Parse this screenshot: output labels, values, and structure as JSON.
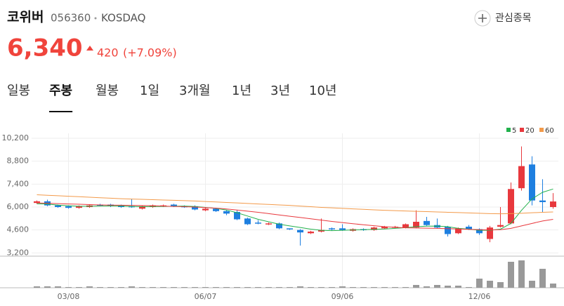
{
  "header": {
    "name": "코위버",
    "code": "056360",
    "market": "KOSDAQ",
    "watch_label": "관심종목"
  },
  "price": {
    "current": "6,340",
    "change": "420",
    "change_rate": "(+7.09%)",
    "color": "#f0443c"
  },
  "tabs": {
    "items": [
      "일봉",
      "주봉",
      "월봉",
      "1일",
      "3개월",
      "1년",
      "3년",
      "10년"
    ],
    "selected": "주봉"
  },
  "chart_data": {
    "type": "candlestick",
    "categories": [
      null,
      null,
      null,
      "03/08",
      null,
      null,
      null,
      null,
      null,
      null,
      null,
      null,
      null,
      null,
      null,
      null,
      "06/07",
      null,
      null,
      null,
      null,
      null,
      null,
      null,
      null,
      null,
      null,
      null,
      null,
      "09/06",
      null,
      null,
      null,
      null,
      null,
      null,
      null,
      null,
      null,
      null,
      null,
      null,
      "12/06",
      null,
      null,
      null,
      null,
      null,
      null,
      null
    ],
    "open": [
      6250,
      6350,
      6100,
      6050,
      5950,
      6000,
      6150,
      6150,
      6100,
      6050,
      5900,
      6000,
      6050,
      6150,
      6050,
      6050,
      5800,
      5900,
      5750,
      5700,
      5300,
      5050,
      4950,
      5000,
      4700,
      4600,
      4400,
      4500,
      4700,
      4700,
      4550,
      4650,
      4600,
      4700,
      4750,
      4750,
      4750,
      5150,
      4900,
      4800,
      4400,
      4800,
      4650,
      4050,
      4800,
      5000,
      7150,
      8600,
      6400,
      6000
    ],
    "high": [
      6400,
      6450,
      6150,
      6100,
      6100,
      6150,
      6200,
      6200,
      6150,
      6500,
      6100,
      6150,
      6150,
      6200,
      6100,
      6100,
      6000,
      5950,
      5800,
      5800,
      5350,
      5200,
      5050,
      5050,
      4700,
      4650,
      4550,
      5300,
      4750,
      4950,
      4700,
      4700,
      4800,
      4850,
      4850,
      5000,
      5800,
      5400,
      5300,
      4850,
      4750,
      4900,
      4700,
      4850,
      6000,
      7500,
      9700,
      9100,
      7700,
      6850
    ],
    "low": [
      6200,
      6050,
      5950,
      5900,
      5900,
      5950,
      6050,
      6000,
      5950,
      5950,
      5850,
      5950,
      6000,
      6000,
      5950,
      5800,
      5750,
      5700,
      5500,
      5200,
      4900,
      4950,
      4900,
      4650,
      4600,
      3650,
      4350,
      4450,
      4550,
      4550,
      4500,
      4550,
      4550,
      4650,
      4700,
      4700,
      4700,
      4850,
      4700,
      4200,
      4350,
      4600,
      4300,
      3850,
      4750,
      4950,
      7000,
      6100,
      5700,
      5900
    ],
    "close": [
      6350,
      6100,
      6000,
      5950,
      6050,
      6100,
      6100,
      6050,
      6000,
      6000,
      6050,
      6100,
      6100,
      6050,
      6000,
      5850,
      5900,
      5750,
      5600,
      5250,
      4950,
      5000,
      5000,
      4700,
      4650,
      4450,
      4500,
      4600,
      4650,
      4600,
      4650,
      4600,
      4750,
      4800,
      4800,
      4950,
      5100,
      4900,
      4750,
      4350,
      4700,
      4650,
      4400,
      4750,
      4900,
      7100,
      8500,
      6400,
      6300,
      6340
    ],
    "up_color": "#e8383d",
    "down_color": "#1e7fe0",
    "ylim": [
      3000,
      10500
    ],
    "yticks": [
      {
        "value": 3200,
        "label": "3,200"
      },
      {
        "value": 4600,
        "label": "4,600"
      },
      {
        "value": 6000,
        "label": "6,000"
      },
      {
        "value": 7400,
        "label": "7,400"
      },
      {
        "value": 8800,
        "label": "8,800"
      },
      {
        "value": 10200,
        "label": "10,200"
      }
    ],
    "grid": true,
    "moving_averages": [
      {
        "name": "5",
        "color": "#22b14c",
        "values": [
          6200,
          6180,
          6120,
          6080,
          6050,
          6050,
          6060,
          6070,
          6060,
          6040,
          6020,
          6030,
          6040,
          6050,
          6060,
          6030,
          5980,
          5920,
          5820,
          5650,
          5450,
          5250,
          5100,
          4950,
          4850,
          4750,
          4650,
          4580,
          4560,
          4580,
          4600,
          4620,
          4640,
          4660,
          4700,
          4740,
          4800,
          4830,
          4840,
          4800,
          4700,
          4650,
          4580,
          4580,
          4650,
          5000,
          5800,
          6500,
          6900,
          7100
        ]
      },
      {
        "name": "20",
        "color": "#e8383d",
        "values": [
          6250,
          6230,
          6210,
          6190,
          6170,
          6150,
          6130,
          6120,
          6110,
          6100,
          6090,
          6080,
          6060,
          6040,
          6020,
          6000,
          5970,
          5930,
          5880,
          5820,
          5750,
          5680,
          5600,
          5520,
          5440,
          5360,
          5280,
          5200,
          5120,
          5050,
          4980,
          4920,
          4860,
          4800,
          4760,
          4730,
          4720,
          4710,
          4700,
          4680,
          4660,
          4640,
          4620,
          4600,
          4620,
          4700,
          4850,
          5000,
          5150,
          5250
        ]
      },
      {
        "name": "60",
        "color": "#f39a4a",
        "values": [
          6750,
          6720,
          6690,
          6660,
          6630,
          6600,
          6570,
          6540,
          6510,
          6490,
          6470,
          6450,
          6430,
          6410,
          6390,
          6370,
          6340,
          6310,
          6280,
          6250,
          6220,
          6190,
          6160,
          6130,
          6100,
          6060,
          6020,
          5980,
          5950,
          5920,
          5890,
          5860,
          5830,
          5800,
          5780,
          5760,
          5740,
          5720,
          5700,
          5680,
          5660,
          5640,
          5620,
          5600,
          5590,
          5600,
          5620,
          5650,
          5680,
          5700
        ]
      }
    ],
    "volume": [
      200,
      200,
      200,
      100,
      100,
      200,
      100,
      100,
      100,
      200,
      100,
      100,
      100,
      100,
      100,
      100,
      100,
      100,
      100,
      100,
      100,
      100,
      100,
      100,
      100,
      200,
      100,
      100,
      100,
      200,
      100,
      100,
      100,
      100,
      100,
      100,
      400,
      200,
      400,
      300,
      300,
      100,
      1300,
      1000,
      800,
      3700,
      3900,
      1000,
      2700,
      600
    ],
    "volume_color": "#999999",
    "volume_ylim": [
      0,
      4200
    ]
  }
}
